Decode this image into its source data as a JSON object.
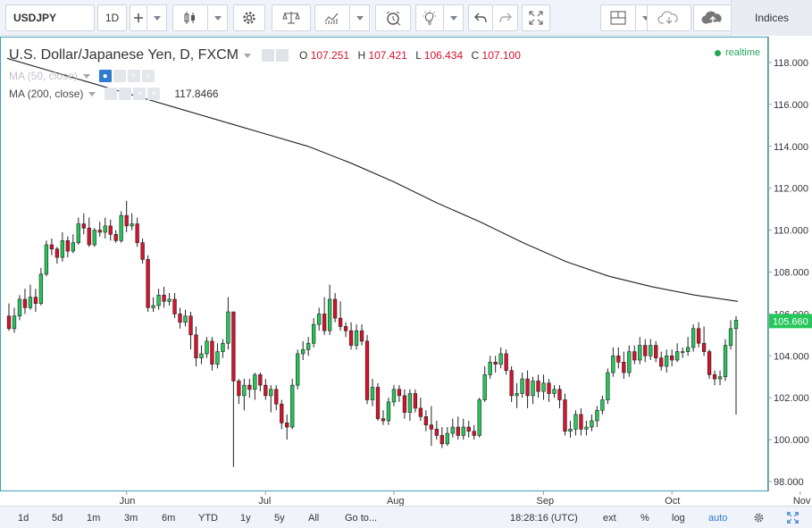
{
  "toolbar": {
    "symbol": "USDJPY",
    "interval": "1D",
    "indices_label": "Indices",
    "icons": [
      "plus-icon",
      "candles-icon",
      "gear-icon",
      "scale-icon",
      "indicators-icon",
      "alarm-icon",
      "bulb-icon",
      "undo-icon",
      "redo-icon",
      "fullscreen-icon",
      "layout-icon",
      "cloud-icon",
      "cloud-upload-icon"
    ]
  },
  "legend": {
    "title": "U.S. Dollar/Japanese Yen, D, FXCM",
    "open_key": "O",
    "open": "107.251",
    "high_key": "H",
    "high": "107.421",
    "low_key": "L",
    "low": "106.434",
    "close_key": "C",
    "close": "107.100",
    "ma50_label": "MA (50, close)",
    "ma200_label": "MA (200, close)",
    "ma200_value": "117.8466"
  },
  "status": {
    "realtime": "realtime"
  },
  "price_axis": {
    "ticks": [
      "118.000",
      "116.000",
      "114.000",
      "112.000",
      "110.000",
      "108.000",
      "106.000",
      "104.000",
      "102.000",
      "100.000",
      "98.000"
    ],
    "last_price": "105.660",
    "colors": {
      "last_price_bg": "#26c65b"
    }
  },
  "time_axis": {
    "labels": [
      "Jun",
      "Jul",
      "Aug",
      "Sep",
      "Oct",
      "Nov"
    ]
  },
  "bottombar": {
    "ranges": [
      "1d",
      "5d",
      "1m",
      "3m",
      "6m",
      "YTD",
      "1y",
      "5y",
      "All"
    ],
    "goto": "Go to...",
    "time": "18:28:16 (UTC)",
    "ext": "ext",
    "percent": "%",
    "log": "log",
    "auto": "auto"
  },
  "chart_data": {
    "type": "candlestick",
    "ylim": [
      98.0,
      118.0
    ],
    "up_color": "#26c65b",
    "down_color": "#d6122c",
    "candles": [
      [
        105.9,
        105.3,
        106.5,
        105.2
      ],
      [
        105.3,
        105.9,
        106.3,
        105.1
      ],
      [
        105.9,
        106.7,
        106.9,
        105.7
      ],
      [
        106.7,
        106.3,
        107.2,
        106.0
      ],
      [
        106.3,
        106.8,
        107.4,
        106.2
      ],
      [
        106.8,
        106.5,
        107.2,
        106.1
      ],
      [
        106.5,
        107.9,
        108.2,
        106.4
      ],
      [
        107.9,
        109.3,
        109.5,
        107.8
      ],
      [
        109.3,
        109.1,
        109.6,
        108.8
      ],
      [
        109.1,
        108.7,
        109.2,
        108.4
      ],
      [
        108.7,
        109.5,
        109.9,
        108.5
      ],
      [
        109.5,
        109.0,
        109.7,
        108.7
      ],
      [
        109.0,
        109.4,
        109.8,
        108.9
      ],
      [
        109.4,
        110.3,
        110.6,
        109.3
      ],
      [
        110.3,
        110.1,
        110.8,
        109.8
      ],
      [
        110.1,
        109.3,
        110.6,
        109.2
      ],
      [
        109.3,
        110.0,
        110.1,
        109.2
      ],
      [
        110.0,
        109.9,
        110.4,
        109.7
      ],
      [
        109.9,
        110.2,
        110.6,
        109.6
      ],
      [
        110.2,
        109.8,
        110.5,
        109.5
      ],
      [
        109.8,
        109.5,
        110.0,
        109.4
      ],
      [
        109.5,
        110.7,
        110.9,
        109.4
      ],
      [
        110.7,
        110.2,
        111.4,
        109.9
      ],
      [
        110.2,
        110.3,
        110.8,
        110.0
      ],
      [
        110.3,
        109.4,
        110.6,
        109.2
      ],
      [
        109.4,
        108.6,
        109.6,
        108.4
      ],
      [
        108.6,
        106.3,
        108.8,
        106.1
      ],
      [
        106.3,
        106.4,
        106.8,
        106.1
      ],
      [
        106.4,
        106.9,
        107.2,
        106.2
      ],
      [
        106.9,
        106.6,
        107.3,
        106.3
      ],
      [
        106.6,
        106.7,
        107.0,
        106.4
      ],
      [
        106.7,
        106.0,
        107.0,
        105.8
      ],
      [
        106.0,
        105.6,
        106.3,
        105.3
      ],
      [
        105.6,
        105.9,
        106.2,
        105.4
      ],
      [
        105.9,
        105.0,
        106.1,
        104.3
      ],
      [
        105.0,
        103.9,
        105.4,
        103.5
      ],
      [
        103.9,
        104.1,
        104.5,
        103.6
      ],
      [
        104.1,
        104.7,
        104.9,
        103.9
      ],
      [
        104.7,
        103.6,
        104.9,
        103.3
      ],
      [
        103.6,
        104.2,
        104.6,
        103.4
      ],
      [
        104.2,
        104.6,
        104.8,
        103.9
      ],
      [
        104.6,
        106.1,
        106.8,
        104.3
      ],
      [
        106.1,
        102.8,
        106.1,
        98.7
      ],
      [
        102.8,
        102.1,
        102.9,
        101.7
      ],
      [
        102.1,
        102.6,
        102.9,
        101.4
      ],
      [
        102.6,
        102.4,
        102.9,
        102.0
      ],
      [
        102.4,
        103.1,
        103.2,
        101.9
      ],
      [
        103.1,
        102.6,
        103.2,
        102.3
      ],
      [
        102.6,
        102.1,
        102.9,
        101.9
      ],
      [
        102.1,
        102.4,
        102.6,
        101.3
      ],
      [
        102.4,
        101.7,
        102.6,
        101.4
      ],
      [
        101.7,
        100.8,
        101.9,
        100.5
      ],
      [
        100.8,
        100.6,
        101.2,
        100.0
      ],
      [
        100.6,
        102.6,
        102.9,
        100.5
      ],
      [
        102.6,
        104.1,
        104.3,
        102.4
      ],
      [
        104.1,
        104.3,
        104.7,
        103.8
      ],
      [
        104.3,
        104.6,
        104.9,
        104.0
      ],
      [
        104.6,
        105.5,
        105.8,
        104.4
      ],
      [
        105.5,
        106.0,
        106.3,
        105.2
      ],
      [
        106.0,
        105.2,
        106.8,
        105.0
      ],
      [
        105.2,
        106.7,
        107.4,
        105.0
      ],
      [
        106.7,
        105.8,
        107.0,
        105.6
      ],
      [
        105.8,
        105.4,
        106.6,
        105.2
      ],
      [
        105.4,
        105.2,
        105.6,
        104.9
      ],
      [
        105.2,
        104.5,
        105.6,
        104.3
      ],
      [
        104.5,
        105.2,
        105.5,
        104.3
      ],
      [
        105.2,
        104.7,
        105.5,
        104.5
      ],
      [
        104.7,
        101.9,
        105.0,
        101.7
      ],
      [
        101.9,
        102.5,
        102.9,
        101.6
      ],
      [
        102.5,
        101.0,
        102.7,
        100.9
      ],
      [
        101.0,
        100.9,
        101.4,
        100.7
      ],
      [
        100.9,
        101.8,
        102.0,
        100.7
      ],
      [
        101.8,
        102.4,
        102.6,
        101.6
      ],
      [
        102.4,
        102.1,
        102.6,
        101.8
      ],
      [
        102.1,
        101.3,
        102.4,
        101.0
      ],
      [
        101.3,
        102.2,
        102.4,
        100.9
      ],
      [
        102.2,
        101.5,
        102.4,
        101.3
      ],
      [
        101.5,
        101.1,
        102.0,
        100.9
      ],
      [
        101.1,
        100.7,
        101.4,
        100.4
      ],
      [
        100.7,
        100.5,
        101.6,
        99.7
      ],
      [
        100.5,
        100.2,
        100.9,
        100.0
      ],
      [
        100.2,
        99.8,
        100.6,
        99.6
      ],
      [
        99.8,
        100.3,
        100.6,
        99.7
      ],
      [
        100.3,
        100.6,
        101.0,
        100.1
      ],
      [
        100.6,
        100.2,
        101.1,
        100.0
      ],
      [
        100.2,
        100.6,
        101.0,
        100.0
      ],
      [
        100.6,
        100.4,
        100.9,
        100.1
      ],
      [
        100.4,
        100.2,
        100.7,
        100.0
      ],
      [
        100.2,
        101.9,
        102.0,
        100.1
      ],
      [
        101.9,
        103.1,
        103.5,
        101.8
      ],
      [
        103.1,
        103.7,
        104.0,
        102.9
      ],
      [
        103.7,
        103.6,
        104.0,
        103.2
      ],
      [
        103.6,
        104.1,
        104.4,
        103.4
      ],
      [
        104.1,
        103.3,
        104.3,
        103.1
      ],
      [
        103.3,
        102.1,
        103.5,
        101.8
      ],
      [
        102.1,
        102.2,
        102.7,
        101.5
      ],
      [
        102.2,
        102.9,
        103.2,
        102.0
      ],
      [
        102.9,
        102.1,
        103.3,
        101.5
      ],
      [
        102.1,
        102.8,
        103.0,
        101.7
      ],
      [
        102.8,
        102.3,
        103.1,
        102.0
      ],
      [
        102.3,
        102.7,
        103.1,
        101.9
      ],
      [
        102.7,
        102.2,
        102.9,
        101.8
      ],
      [
        102.2,
        102.4,
        102.6,
        102.0
      ],
      [
        102.4,
        101.9,
        102.6,
        101.5
      ],
      [
        101.9,
        100.4,
        102.2,
        100.2
      ],
      [
        100.4,
        100.5,
        100.9,
        100.1
      ],
      [
        100.5,
        101.2,
        101.4,
        100.2
      ],
      [
        101.2,
        100.5,
        101.5,
        100.2
      ],
      [
        100.5,
        100.6,
        100.9,
        100.2
      ],
      [
        100.6,
        100.9,
        101.2,
        100.4
      ],
      [
        100.9,
        101.4,
        101.6,
        100.6
      ],
      [
        101.4,
        101.9,
        102.1,
        101.2
      ],
      [
        101.9,
        103.2,
        103.4,
        101.7
      ],
      [
        103.2,
        104.0,
        104.4,
        103.0
      ],
      [
        104.0,
        103.7,
        104.4,
        103.4
      ],
      [
        103.7,
        103.2,
        104.2,
        102.9
      ],
      [
        103.2,
        104.2,
        104.5,
        103.0
      ],
      [
        104.2,
        103.8,
        104.5,
        103.6
      ],
      [
        103.8,
        104.5,
        104.9,
        103.6
      ],
      [
        104.5,
        104.0,
        104.8,
        103.7
      ],
      [
        104.0,
        104.5,
        104.8,
        103.8
      ],
      [
        104.5,
        103.9,
        104.7,
        103.7
      ],
      [
        103.9,
        103.5,
        104.2,
        103.3
      ],
      [
        103.5,
        104.0,
        104.3,
        103.2
      ],
      [
        104.0,
        103.8,
        104.3,
        103.5
      ],
      [
        103.8,
        104.2,
        104.6,
        103.7
      ],
      [
        104.2,
        104.2,
        104.4,
        103.9
      ],
      [
        104.2,
        104.4,
        104.9,
        104.0
      ],
      [
        104.4,
        105.3,
        105.5,
        104.2
      ],
      [
        105.3,
        104.6,
        105.6,
        104.4
      ],
      [
        104.6,
        104.2,
        105.4,
        104.0
      ],
      [
        104.2,
        103.1,
        104.3,
        102.9
      ],
      [
        103.1,
        102.9,
        103.3,
        102.6
      ],
      [
        102.9,
        103.0,
        103.3,
        102.6
      ],
      [
        103.0,
        104.5,
        104.8,
        102.8
      ],
      [
        104.5,
        105.3,
        105.7,
        104.3
      ],
      [
        105.3,
        105.7,
        105.9,
        101.2
      ]
    ],
    "ma200": [
      118.2,
      117.6,
      117.0,
      116.4,
      115.8,
      115.2,
      114.6,
      114.0,
      113.2,
      112.3,
      111.3,
      110.4,
      109.4,
      108.5,
      107.8,
      107.3,
      106.9,
      106.6
    ]
  }
}
